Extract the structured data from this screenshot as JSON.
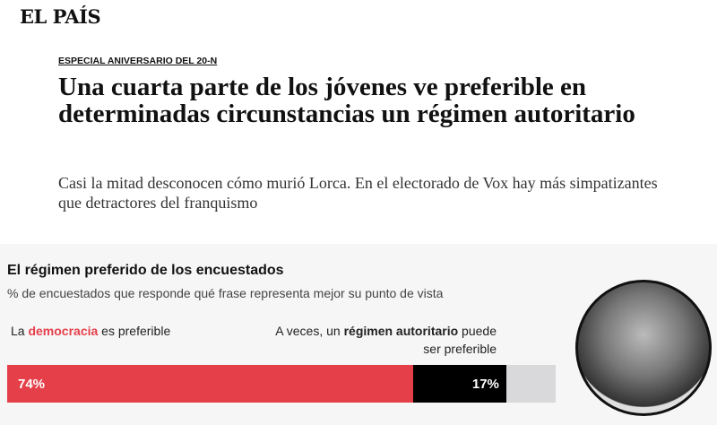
{
  "header": {
    "logo": "EL PAÍS"
  },
  "article": {
    "kicker": "ESPECIAL ANIVERSARIO DEL 20-N",
    "headline": "Una cuarta parte de los jóvenes ve preferible en determinadas circunstancias un régimen autoritario",
    "subheadline": "Casi la mitad desconocen cómo murió Lorca. En el electorado de Vox hay más simpatizantes que detractores del franquismo"
  },
  "chart_data": {
    "type": "bar",
    "title": "El régimen preferido de los encuestados",
    "subtitle": "% de encuestados que responde qué frase representa mejor su punto de vista",
    "stacked": true,
    "left_label": {
      "pre": "La ",
      "bold": "democracia",
      "post": " es preferible"
    },
    "right_label": {
      "pre": "A veces, un ",
      "bold": "régimen autoritario",
      "post": " puede ser preferible"
    },
    "series": [
      {
        "value": 74,
        "label": "74%",
        "color": "#e5404a"
      },
      {
        "value": 17,
        "label": "17%",
        "color": "#000000"
      },
      {
        "value": 9,
        "label": "",
        "color": "#d9d9db"
      }
    ]
  }
}
